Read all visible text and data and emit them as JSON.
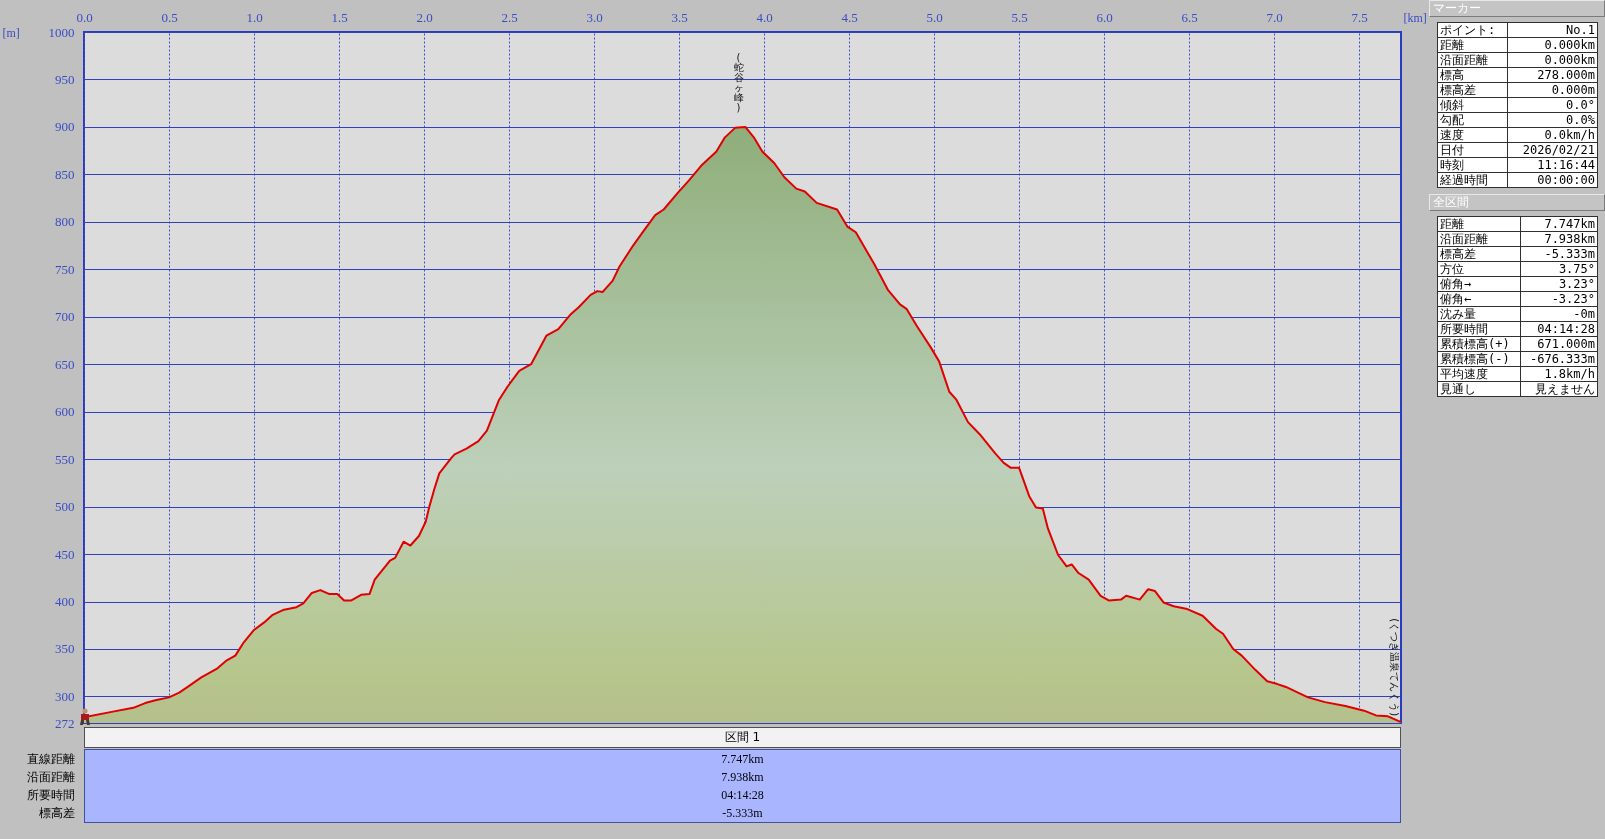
{
  "chart_data": [
    {
      "type": "area",
      "xlabel": "[km]",
      "ylabel": "[m]",
      "xlim": [
        0,
        7.747
      ],
      "ylim": [
        272,
        1000
      ],
      "xticks": [
        {
          "value": 0,
          "label": "0.0"
        },
        0.5,
        {
          "value": 1,
          "label": "1.0"
        },
        1.5,
        {
          "value": 2,
          "label": "2.0"
        },
        2.5,
        {
          "value": 3,
          "label": "3.0"
        },
        3.5,
        {
          "value": 4,
          "label": "4.0"
        },
        4.5,
        {
          "value": 5,
          "label": "5.0"
        },
        5.5,
        {
          "value": 6,
          "label": "6.0"
        },
        6.5,
        {
          "value": 7,
          "label": "7.0"
        },
        7.5
      ],
      "yticks": [
        272,
        300,
        350,
        400,
        450,
        500,
        550,
        600,
        650,
        700,
        750,
        800,
        850,
        900,
        950,
        1000
      ],
      "grid": true,
      "x": [
        0,
        0.17,
        0.29,
        0.36,
        0.42,
        0.5,
        0.56,
        0.61,
        0.69,
        0.78,
        0.84,
        0.89,
        0.94,
        1.0,
        1.06,
        1.11,
        1.17,
        1.25,
        1.29,
        1.34,
        1.39,
        1.44,
        1.49,
        1.53,
        1.57,
        1.63,
        1.68,
        1.71,
        1.8,
        1.83,
        1.88,
        1.92,
        1.97,
        2.01,
        2.03,
        2.06,
        2.09,
        2.16,
        2.18,
        2.25,
        2.32,
        2.37,
        2.44,
        2.49,
        2.56,
        2.63,
        2.72,
        2.79,
        2.86,
        2.91,
        2.98,
        3.02,
        3.05,
        3.11,
        3.15,
        3.23,
        3.29,
        3.36,
        3.41,
        3.49,
        3.56,
        3.63,
        3.72,
        3.77,
        3.83,
        3.89,
        3.94,
        3.99,
        4.06,
        4.12,
        4.19,
        4.24,
        4.31,
        4.43,
        4.49,
        4.54,
        4.65,
        4.73,
        4.8,
        4.84,
        4.9,
        4.98,
        5.03,
        5.09,
        5.13,
        5.2,
        5.27,
        5.36,
        5.41,
        5.45,
        5.5,
        5.52,
        5.56,
        5.6,
        5.64,
        5.67,
        5.73,
        5.78,
        5.81,
        5.85,
        5.91,
        5.98,
        6.03,
        6.1,
        6.13,
        6.19,
        6.21,
        6.26,
        6.3,
        6.35,
        6.41,
        6.49,
        6.58,
        6.66,
        6.7,
        6.76,
        6.81,
        6.89,
        6.96,
        7.02,
        7.07,
        7.2,
        7.3,
        7.42,
        7.53,
        7.6,
        7.67,
        7.747
      ],
      "series": [
        {
          "color": "#e00000",
          "values": [
            278,
            284,
            288,
            293,
            296,
            299,
            304,
            310,
            320,
            329,
            338,
            343,
            357,
            370,
            378,
            386,
            391,
            394,
            398,
            409,
            412,
            408,
            408,
            401,
            401,
            407,
            408,
            423,
            443,
            446,
            463,
            459,
            469,
            484,
            499,
            518,
            535,
            551,
            555,
            561,
            569,
            580,
            612,
            626,
            643,
            650,
            680,
            687,
            702,
            710,
            723,
            727,
            726,
            738,
            753,
            775,
            790,
            807,
            813,
            830,
            844,
            859,
            874,
            889,
            899,
            900,
            889,
            874,
            862,
            847,
            835,
            832,
            820,
            813,
            795,
            789,
            755,
            728,
            713,
            708,
            690,
            668,
            653,
            621,
            613,
            589,
            576,
            556,
            546,
            541,
            541,
            531,
            511,
            499,
            498,
            477,
            449,
            437,
            439,
            430,
            423,
            406,
            401,
            402,
            406,
            403,
            402,
            413,
            411,
            399,
            395,
            392,
            385,
            371,
            366,
            350,
            343,
            328,
            316,
            313,
            310,
            299,
            294,
            290,
            285,
            280,
            279,
            273
          ]
        }
      ],
      "annotations": [
        {
          "text": "(蛇谷ヶ峰)",
          "x": 3.85,
          "y": 900
        },
        {
          "text": "(くつき温泉てんくう)",
          "x": 7.747,
          "y": 273
        }
      ]
    },
    {
      "type": "other",
      "title": "マーカー",
      "annotations": [
        "ポイント:",
        "No.1",
        "距離",
        "0.000km",
        "沿面距離",
        "0.000km",
        "標高",
        "278.000m",
        "標高差",
        "0.000m",
        "傾斜",
        "0.0°",
        "勾配",
        "0.0%",
        "速度",
        "0.0km/h",
        "日付",
        "2026/02/21",
        "時刻",
        "11:16:44",
        "経過時間",
        "00:00:00"
      ]
    },
    {
      "type": "other",
      "title": "全区間",
      "annotations": [
        "距離",
        "7.747km",
        "沿面距離",
        "7.938km",
        "標高差",
        "-5.333m",
        "方位",
        "3.75°",
        "俯角→",
        "3.23°",
        "俯角←",
        "-3.23°",
        "沈み量",
        "-0m",
        "所要時間",
        "04:14:28",
        "累積標高(+)",
        "671.000m",
        "累積標高(-)",
        "-676.333m",
        "平均速度",
        "1.8km/h",
        "見通し",
        "見えません"
      ]
    },
    {
      "type": "other",
      "title": "区間 1",
      "annotations": [
        "直線距離",
        "7.747km",
        "沿面距離",
        "7.938km",
        "所要時間",
        "04:14:28",
        "標高差",
        "-5.333m"
      ]
    }
  ]
}
